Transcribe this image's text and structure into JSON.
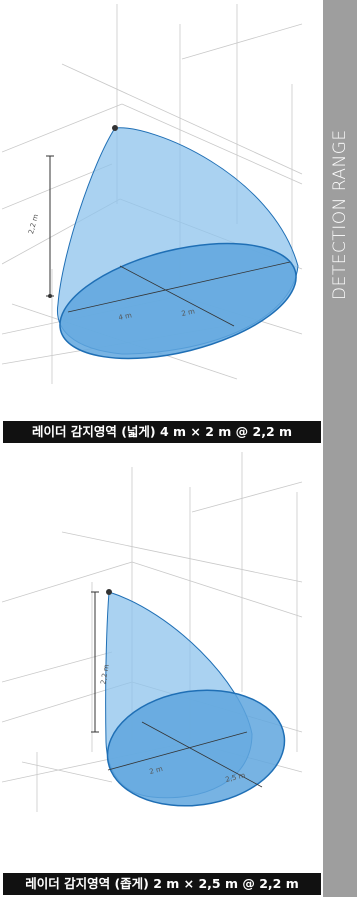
{
  "sidebar": {
    "title": "DETECTION RANGE"
  },
  "colors": {
    "cone_fill": "#8dc3ec",
    "base_fill": "#5fa6de",
    "outline": "#1f6fb5",
    "sidebar_bg": "#9e9e9e",
    "caption_bg": "#111111"
  },
  "diagrams": [
    {
      "caption": "레이더 감지영역 (넓게) 4 m × 2 m @ 2,2 m",
      "labels": {
        "height": "2,2 m",
        "width": "4 m",
        "depth": "2 m"
      }
    },
    {
      "caption": "레이더 감지영역 (좁게) 2 m × 2,5 m @ 2,2 m",
      "labels": {
        "height": "2,2 m",
        "width": "2 m",
        "depth": "2,5 m"
      }
    }
  ]
}
